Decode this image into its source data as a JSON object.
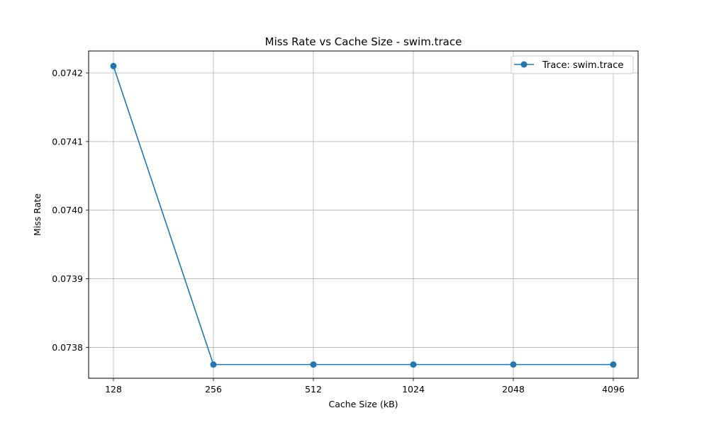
{
  "chart_data": {
    "type": "line",
    "title": "Miss Rate vs Cache Size - swim.trace",
    "xlabel": "Cache Size (kB)",
    "ylabel": "Miss Rate",
    "categories": [
      "128",
      "256",
      "512",
      "1024",
      "2048",
      "4096"
    ],
    "series": [
      {
        "name": "Trace: swim.trace",
        "color": "#1f77b4",
        "marker": "circle",
        "values": [
          0.07421,
          0.073775,
          0.073775,
          0.073775,
          0.073775,
          0.073775
        ]
      }
    ],
    "ylim": [
      0.073755,
      0.074232
    ],
    "yticks": [
      0.0738,
      0.0739,
      0.074,
      0.0741,
      0.0742
    ],
    "ytick_labels": [
      "0.0738",
      "0.0739",
      "0.0740",
      "0.0741",
      "0.0742"
    ],
    "grid": true,
    "legend_position": "top-right"
  }
}
